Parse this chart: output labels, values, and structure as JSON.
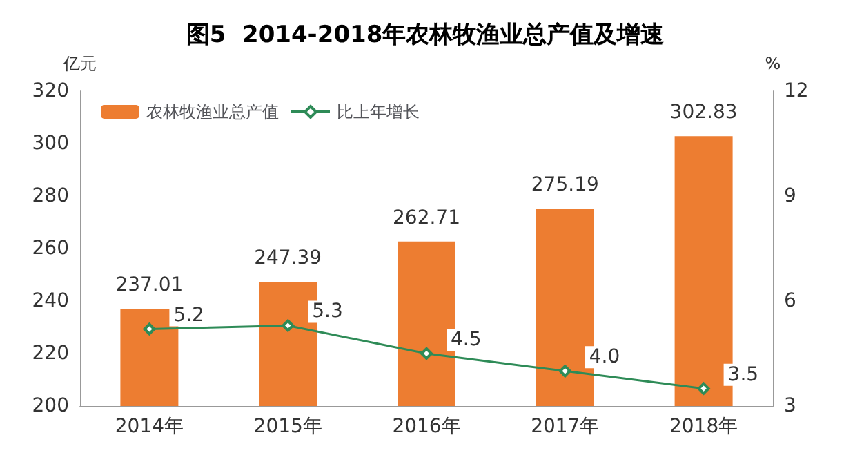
{
  "chart_data": {
    "type": "bar",
    "title": "图5  2014-2018年农林牧渔业总产值及增速",
    "ylabel": "亿元",
    "y2label": "%",
    "categories": [
      "2014年",
      "2015年",
      "2016年",
      "2017年",
      "2018年"
    ],
    "series": [
      {
        "name": "农林牧渔业总产值",
        "color": "#ed7d31",
        "values": [
          237.01,
          247.39,
          262.71,
          275.19,
          302.83
        ]
      },
      {
        "name": "比上年增长",
        "type": "line",
        "axis": "y2",
        "color": "#2e8b57",
        "marker": "diamond",
        "values": [
          5.2,
          5.3,
          4.5,
          4.0,
          3.5
        ],
        "value_labels": [
          "5.2",
          "5.3",
          "4.5",
          "4.0",
          "3.5"
        ]
      }
    ],
    "ylim": [
      200,
      320
    ],
    "yticks": [
      200,
      220,
      240,
      260,
      280,
      300,
      320
    ],
    "y2lim": [
      3,
      12
    ],
    "y2ticks": [
      3,
      6,
      9,
      12
    ],
    "data_labels": true,
    "grid": false,
    "legend": "top left"
  }
}
